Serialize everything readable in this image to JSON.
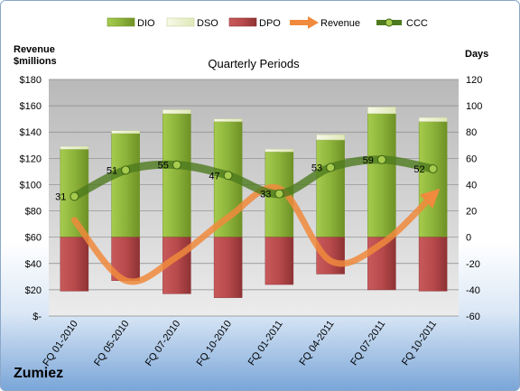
{
  "company": "Zumiez",
  "chart_data": {
    "type": "bar",
    "title": "Quarterly Periods",
    "left_axis_label": [
      "Revenue",
      "$millions"
    ],
    "right_axis_label": "Days",
    "categories": [
      "FQ 01-2010",
      "FQ 05-2010",
      "FQ 07-2010",
      "FQ 10-2010",
      "FQ 01-2011",
      "FQ 04-2011",
      "FQ 07-2011",
      "FQ 10-2011"
    ],
    "left_axis": {
      "min": 0,
      "max": 180,
      "step": 20,
      "tick_labels": [
        "$-",
        "$20",
        "$40",
        "$60",
        "$80",
        "$100",
        "$120",
        "$140",
        "$160",
        "$180"
      ]
    },
    "right_axis": {
      "min": -60,
      "max": 120,
      "step": 20,
      "tick_labels": [
        "-60",
        "-40",
        "-20",
        "0",
        "20",
        "40",
        "60",
        "80",
        "100",
        "120"
      ]
    },
    "legend": [
      "DIO",
      "DSO",
      "DPO",
      "Revenue",
      "CCC"
    ],
    "legend_position": "top",
    "series": [
      {
        "name": "DIO",
        "axis": "right",
        "color": "#8cb33a",
        "values": [
          67,
          79,
          94,
          88,
          65,
          74,
          94,
          88
        ]
      },
      {
        "name": "DSO",
        "axis": "right",
        "color": "#eef3d6",
        "values": [
          2,
          2,
          3,
          2,
          2,
          4,
          5,
          3
        ]
      },
      {
        "name": "DPO",
        "axis": "right",
        "color": "#b84a4c",
        "values": [
          -41,
          -33,
          -43,
          -46,
          -36,
          -28,
          -40,
          -41
        ]
      },
      {
        "name": "Revenue",
        "axis": "left",
        "color": "#f08a3c",
        "values": [
          73,
          27,
          45,
          75,
          97,
          42,
          55,
          92
        ]
      },
      {
        "name": "CCC",
        "axis": "right",
        "color": "#4d7a1e",
        "values": [
          31,
          51,
          55,
          47,
          33,
          53,
          59,
          52
        ]
      }
    ],
    "ccc_labels": [
      "31",
      "51",
      "55",
      "47",
      "33",
      "53",
      "59",
      "52"
    ]
  }
}
